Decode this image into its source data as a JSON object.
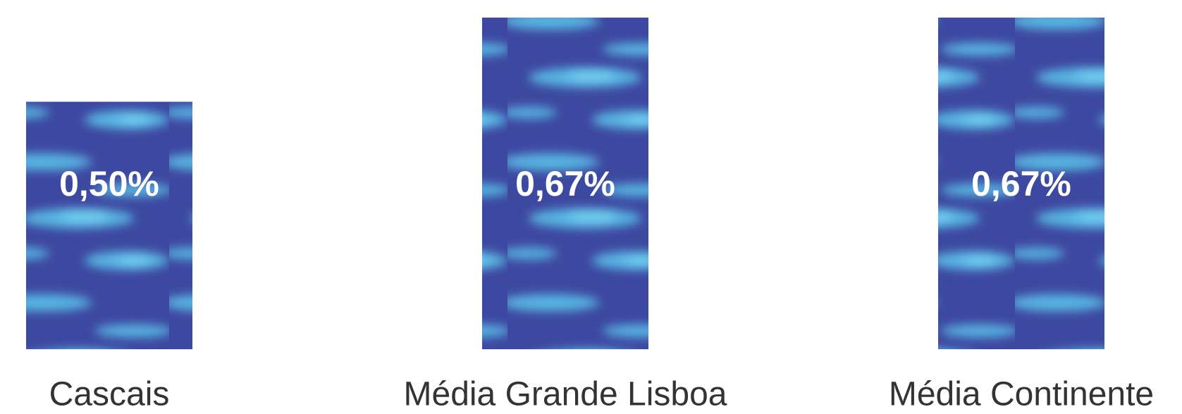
{
  "chart_data": {
    "type": "bar",
    "categories": [
      "Cascais",
      "Média Grande Lisboa",
      "Média Continente"
    ],
    "values": [
      0.5,
      0.67,
      0.67
    ],
    "value_labels": [
      "0,50%",
      "0,67%",
      "0,67%"
    ],
    "color": "#3d48a0"
  }
}
